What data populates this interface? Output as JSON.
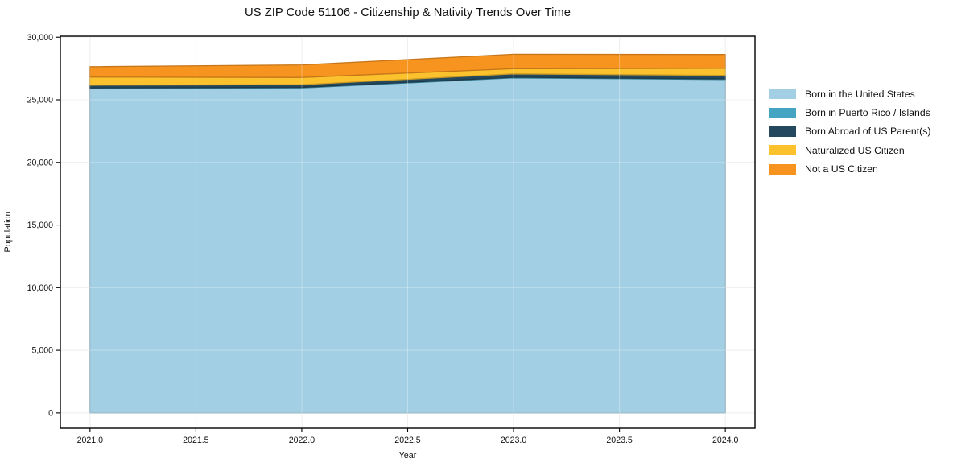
{
  "figure": {
    "title": "US ZIP Code 51106 - Citizenship & Nativity Trends Over Time",
    "xlabel": "Year",
    "ylabel": "Population"
  },
  "chart_data": {
    "type": "area",
    "stacked": true,
    "title": "US ZIP Code 51106 - Citizenship & Nativity Trends Over Time",
    "xlabel": "Year",
    "ylabel": "Population",
    "x": [
      2021,
      2022,
      2023,
      2024
    ],
    "series": [
      {
        "name": "Born in the United States",
        "color": "#a3cfe5",
        "values": [
          25900,
          25950,
          26750,
          26620
        ]
      },
      {
        "name": "Born in Puerto Rico / Islands",
        "color": "#44a4c1",
        "values": [
          50,
          50,
          50,
          50
        ]
      },
      {
        "name": "Born Abroad of US Parent(s)",
        "color": "#24485e",
        "values": [
          220,
          210,
          270,
          280
        ]
      },
      {
        "name": "Naturalized US Citizen",
        "color": "#fcc22e",
        "values": [
          650,
          580,
          420,
          570
        ]
      },
      {
        "name": "Not a US Citizen",
        "color": "#f7941f",
        "values": [
          830,
          1000,
          1150,
          1100
        ]
      }
    ],
    "x_tick_labels": [
      "2021.0",
      "2021.5",
      "2022.0",
      "2022.5",
      "2023.0",
      "2023.5",
      "2024.0"
    ],
    "x_tick_values": [
      2021,
      2021.5,
      2022,
      2022.5,
      2023,
      2023.5,
      2024
    ],
    "y_tick_labels": [
      "0",
      "5,000",
      "10,000",
      "15,000",
      "20,000",
      "25,000",
      "30,000"
    ],
    "y_tick_values": [
      0,
      5000,
      10000,
      15000,
      20000,
      25000,
      30000
    ],
    "xlim": [
      2020.86,
      2024.14
    ],
    "ylim": [
      -1230,
      30080
    ],
    "grid": true,
    "legend_position": "right"
  }
}
